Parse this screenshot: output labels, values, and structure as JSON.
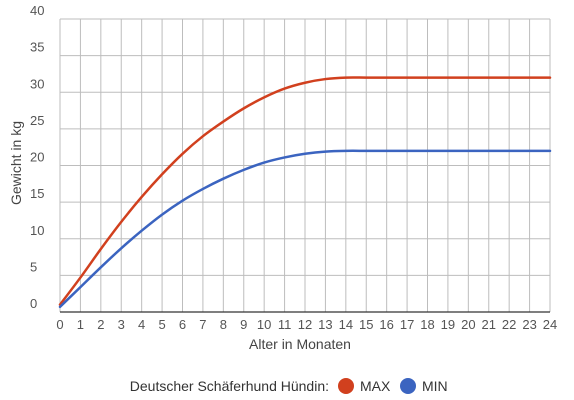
{
  "chart_data": {
    "type": "line",
    "xlabel": "Alter in Monaten",
    "ylabel": "Gewicht in kg",
    "xlim": [
      0,
      24
    ],
    "ylim": [
      0,
      40
    ],
    "x_ticks": [
      "0",
      "1",
      "2",
      "3",
      "4",
      "5",
      "6",
      "7",
      "8",
      "9",
      "10",
      "11",
      "12",
      "13",
      "14",
      "15",
      "16",
      "17",
      "18",
      "19",
      "20",
      "21",
      "22",
      "23",
      "24"
    ],
    "y_ticks": [
      "0",
      "5",
      "10",
      "15",
      "20",
      "25",
      "30",
      "35",
      "40"
    ],
    "grid": true,
    "legend_position": "bottom",
    "legend_title": "Deutscher Schäferhund Hündin:",
    "series": [
      {
        "name": "MAX",
        "color": "#d1401e",
        "x": [
          0,
          1,
          2,
          3,
          4,
          5,
          6,
          7,
          8,
          9,
          10,
          11,
          12,
          13,
          14,
          15,
          16,
          17,
          18,
          19,
          20,
          21,
          22,
          23,
          24
        ],
        "values": [
          1,
          4.7,
          8.6,
          12.3,
          15.7,
          18.8,
          21.6,
          24,
          26,
          27.8,
          29.3,
          30.5,
          31.3,
          31.8,
          32,
          32,
          32,
          32,
          32,
          32,
          32,
          32,
          32,
          32,
          32
        ]
      },
      {
        "name": "MIN",
        "color": "#3b64c0",
        "x": [
          0,
          1,
          2,
          3,
          4,
          5,
          6,
          7,
          8,
          9,
          10,
          11,
          12,
          13,
          14,
          15,
          16,
          17,
          18,
          19,
          20,
          21,
          22,
          23,
          24
        ],
        "values": [
          0.7,
          3.4,
          6.1,
          8.7,
          11.1,
          13.3,
          15.2,
          16.8,
          18.2,
          19.4,
          20.4,
          21.1,
          21.6,
          21.9,
          22,
          22,
          22,
          22,
          22,
          22,
          22,
          22,
          22,
          22,
          22
        ]
      }
    ]
  }
}
